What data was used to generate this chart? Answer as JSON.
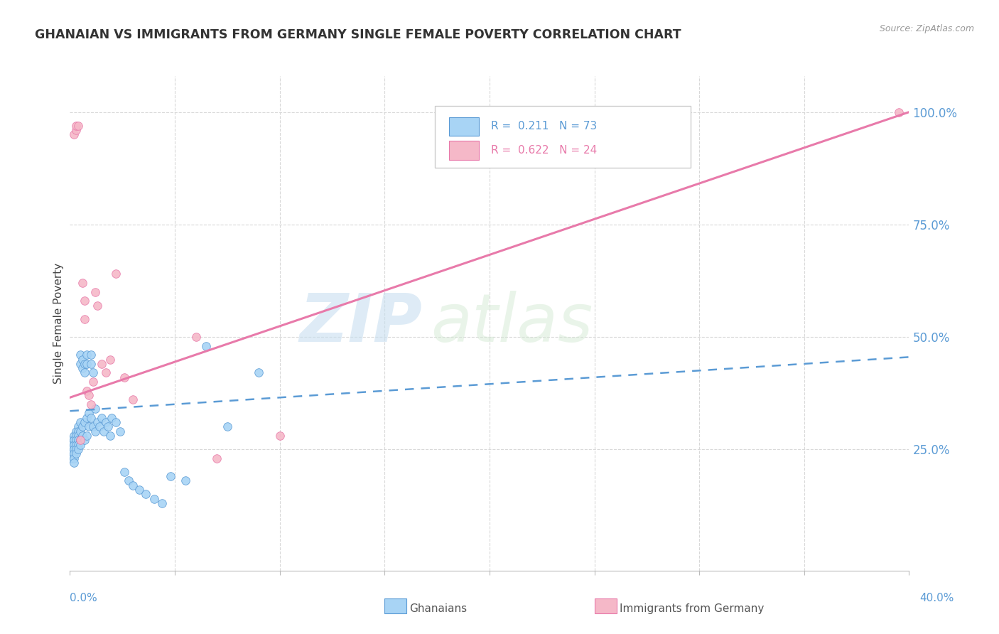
{
  "title": "GHANAIAN VS IMMIGRANTS FROM GERMANY SINGLE FEMALE POVERTY CORRELATION CHART",
  "source": "Source: ZipAtlas.com",
  "ylabel": "Single Female Poverty",
  "y_tick_labels": [
    "100.0%",
    "75.0%",
    "50.0%",
    "25.0%"
  ],
  "y_tick_values": [
    1.0,
    0.75,
    0.5,
    0.25
  ],
  "x_range": [
    0.0,
    0.4
  ],
  "y_range": [
    -0.02,
    1.08
  ],
  "ghanaian_color": "#a8d4f5",
  "germany_color": "#f5b8c8",
  "trend_ghanaian_color": "#5b9bd5",
  "trend_germany_color": "#e87aaa",
  "watermark_zip": "ZIP",
  "watermark_atlas": "atlas",
  "background_color": "#ffffff",
  "grid_color": "#d8d8d8",
  "blue_trend_x0": 0.0,
  "blue_trend_y0": 0.335,
  "blue_trend_x1": 0.4,
  "blue_trend_y1": 0.455,
  "pink_trend_x0": 0.0,
  "pink_trend_y0": 0.365,
  "pink_trend_x1": 0.4,
  "pink_trend_y1": 1.0,
  "ghanaian_x": [
    0.001,
    0.001,
    0.001,
    0.001,
    0.001,
    0.002,
    0.002,
    0.002,
    0.002,
    0.002,
    0.002,
    0.002,
    0.003,
    0.003,
    0.003,
    0.003,
    0.003,
    0.003,
    0.004,
    0.004,
    0.004,
    0.004,
    0.004,
    0.004,
    0.005,
    0.005,
    0.005,
    0.005,
    0.005,
    0.005,
    0.006,
    0.006,
    0.006,
    0.006,
    0.007,
    0.007,
    0.007,
    0.007,
    0.008,
    0.008,
    0.008,
    0.008,
    0.009,
    0.009,
    0.01,
    0.01,
    0.01,
    0.011,
    0.011,
    0.012,
    0.012,
    0.013,
    0.014,
    0.015,
    0.016,
    0.017,
    0.018,
    0.019,
    0.02,
    0.022,
    0.024,
    0.026,
    0.028,
    0.03,
    0.033,
    0.036,
    0.04,
    0.044,
    0.048,
    0.055,
    0.065,
    0.075,
    0.09
  ],
  "ghanaian_y": [
    0.27,
    0.26,
    0.25,
    0.24,
    0.23,
    0.28,
    0.27,
    0.26,
    0.25,
    0.24,
    0.23,
    0.22,
    0.29,
    0.28,
    0.27,
    0.26,
    0.25,
    0.24,
    0.3,
    0.29,
    0.28,
    0.27,
    0.26,
    0.25,
    0.46,
    0.44,
    0.31,
    0.29,
    0.27,
    0.26,
    0.45,
    0.43,
    0.3,
    0.28,
    0.44,
    0.42,
    0.31,
    0.27,
    0.46,
    0.44,
    0.32,
    0.28,
    0.33,
    0.3,
    0.46,
    0.44,
    0.32,
    0.42,
    0.3,
    0.34,
    0.29,
    0.31,
    0.3,
    0.32,
    0.29,
    0.31,
    0.3,
    0.28,
    0.32,
    0.31,
    0.29,
    0.2,
    0.18,
    0.17,
    0.16,
    0.15,
    0.14,
    0.13,
    0.19,
    0.18,
    0.48,
    0.3,
    0.42
  ],
  "germany_x": [
    0.002,
    0.003,
    0.003,
    0.004,
    0.005,
    0.006,
    0.007,
    0.007,
    0.008,
    0.009,
    0.01,
    0.011,
    0.012,
    0.013,
    0.015,
    0.017,
    0.019,
    0.022,
    0.026,
    0.03,
    0.06,
    0.07,
    0.1,
    0.395
  ],
  "germany_y": [
    0.95,
    0.96,
    0.97,
    0.97,
    0.27,
    0.62,
    0.58,
    0.54,
    0.38,
    0.37,
    0.35,
    0.4,
    0.6,
    0.57,
    0.44,
    0.42,
    0.45,
    0.64,
    0.41,
    0.36,
    0.5,
    0.23,
    0.28,
    1.0
  ]
}
